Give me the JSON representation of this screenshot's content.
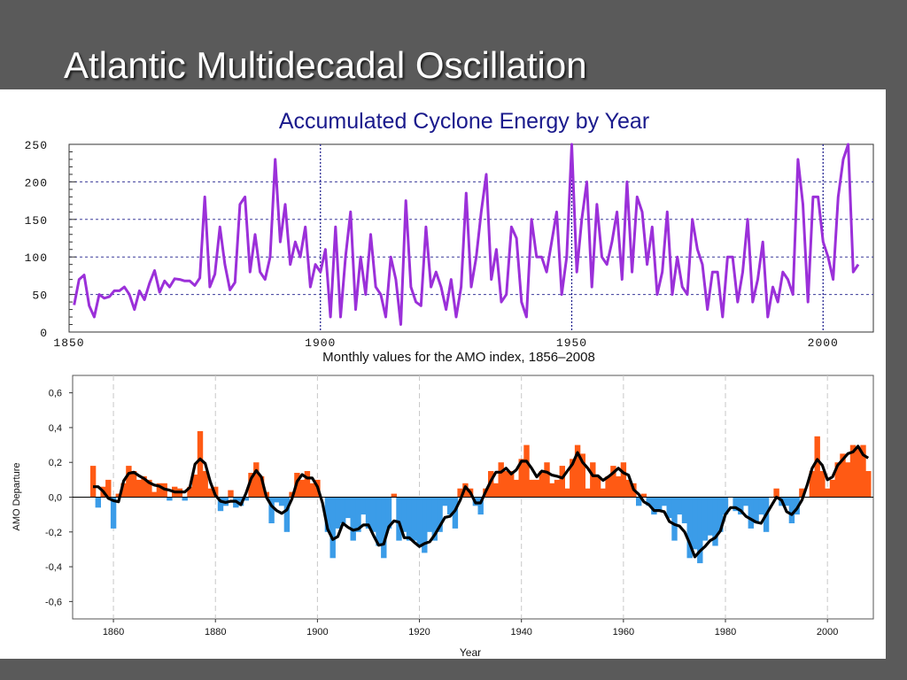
{
  "slide": {
    "title": "Atlantic Multidecadal Oscillation"
  },
  "chart_data": [
    {
      "type": "line",
      "title": "Accumulated Cyclone Energy by Year",
      "xlabel": "",
      "ylabel": "",
      "xlim": [
        1850,
        2010
      ],
      "ylim": [
        0,
        250
      ],
      "x_ticks": [
        "1850",
        "1900",
        "1950",
        "2000"
      ],
      "y_ticks": [
        "0",
        "50",
        "100",
        "150",
        "200",
        "250"
      ],
      "color": "#9b30d9",
      "grid": "dashed horizontal",
      "series": [
        {
          "x": [
            1851,
            1852,
            1853,
            1854,
            1855,
            1856,
            1857,
            1858,
            1859,
            1860,
            1861,
            1862,
            1863,
            1864,
            1865,
            1866,
            1867,
            1868,
            1869,
            1870,
            1871,
            1872,
            1873,
            1874,
            1875,
            1876,
            1877,
            1878,
            1879,
            1880,
            1881,
            1882,
            1883,
            1884,
            1885,
            1886,
            1887,
            1888,
            1889,
            1890,
            1891,
            1892,
            1893,
            1894,
            1895,
            1896,
            1897,
            1898,
            1899,
            1900,
            1901,
            1902,
            1903,
            1904,
            1905,
            1906,
            1907,
            1908,
            1909,
            1910,
            1911,
            1912,
            1913,
            1914,
            1915,
            1916,
            1917,
            1918,
            1919,
            1920,
            1921,
            1922,
            1923,
            1924,
            1925,
            1926,
            1927,
            1928,
            1929,
            1930,
            1931,
            1932,
            1933,
            1934,
            1935,
            1936,
            1937,
            1938,
            1939,
            1940,
            1941,
            1942,
            1943,
            1944,
            1945,
            1946,
            1947,
            1948,
            1949,
            1950,
            1951,
            1952,
            1953,
            1954,
            1955,
            1956,
            1957,
            1958,
            1959,
            1960,
            1961,
            1962,
            1963,
            1964,
            1965,
            1966,
            1967,
            1968,
            1969,
            1970,
            1971,
            1972,
            1973,
            1974,
            1975,
            1976,
            1977,
            1978,
            1979,
            1980,
            1981,
            1982,
            1983,
            1984,
            1985,
            1986,
            1987,
            1988,
            1989,
            1990,
            1991,
            1992,
            1993,
            1994,
            1995,
            1996,
            1997,
            1998,
            1999,
            2000,
            2001,
            2002,
            2003,
            2004,
            2005,
            2006,
            2007
          ],
          "values": [
            36,
            70,
            76,
            35,
            20,
            50,
            45,
            47,
            55,
            55,
            60,
            50,
            30,
            55,
            43,
            65,
            82,
            53,
            68,
            60,
            71,
            70,
            68,
            68,
            62,
            72,
            180,
            60,
            77,
            140,
            90,
            56,
            66,
            170,
            180,
            80,
            130,
            80,
            70,
            100,
            230,
            120,
            170,
            90,
            120,
            100,
            140,
            60,
            90,
            80,
            110,
            20,
            140,
            20,
            100,
            160,
            30,
            100,
            50,
            130,
            60,
            50,
            20,
            100,
            70,
            10,
            175,
            60,
            40,
            35,
            140,
            60,
            80,
            60,
            30,
            70,
            20,
            60,
            185,
            60,
            100,
            160,
            210,
            70,
            110,
            40,
            50,
            140,
            125,
            40,
            20,
            150,
            100,
            100,
            80,
            120,
            160,
            50,
            100,
            250,
            80,
            150,
            200,
            60,
            170,
            100,
            90,
            120,
            160,
            70,
            200,
            80,
            180,
            160,
            90,
            140,
            50,
            80,
            160,
            50,
            100,
            60,
            50,
            150,
            110,
            90,
            30,
            80,
            80,
            20,
            100,
            100,
            40,
            80,
            150,
            40,
            70,
            120,
            20,
            60,
            40,
            80,
            70,
            50,
            230,
            170,
            40,
            180,
            180,
            120,
            100,
            70,
            180,
            230,
            250,
            80,
            90
          ]
        }
      ]
    },
    {
      "type": "area",
      "title": "Monthly values for the AMO index, 1856–2008",
      "xlabel": "Year",
      "ylabel": "AMO Departure",
      "xlim": [
        1852,
        2009
      ],
      "ylim": [
        -0.7,
        0.7
      ],
      "x_ticks": [
        "1860",
        "1880",
        "1900",
        "1920",
        "1940",
        "1960",
        "1980",
        "2000"
      ],
      "y_ticks": [
        "0,6",
        "0,4",
        "0,2",
        "0,0",
        "-0,2",
        "-0,4",
        "-0,6"
      ],
      "colors": {
        "positive": "#ff5a14",
        "negative": "#3b9ce8",
        "smoothed": "#000000"
      },
      "series": [
        {
          "name": "",
          "x": [
            1856,
            1857,
            1858,
            1859,
            1860,
            1861,
            1862,
            1863,
            1864,
            1865,
            1866,
            1867,
            1868,
            1869,
            1870,
            1871,
            1872,
            1873,
            1874,
            1875,
            1876,
            1877,
            1878,
            1879,
            1880,
            1881,
            1882,
            1883,
            1884,
            1885,
            1886,
            1887,
            1888,
            1889,
            1890,
            1891,
            1892,
            1893,
            1894,
            1895,
            1896,
            1897,
            1898,
            1899,
            1900,
            1901,
            1902,
            1903,
            1904,
            1905,
            1906,
            1907,
            1908,
            1909,
            1910,
            1911,
            1912,
            1913,
            1914,
            1915,
            1916,
            1917,
            1918,
            1919,
            1920,
            1921,
            1922,
            1923,
            1924,
            1925,
            1926,
            1927,
            1928,
            1929,
            1930,
            1931,
            1932,
            1933,
            1934,
            1935,
            1936,
            1937,
            1938,
            1939,
            1940,
            1941,
            1942,
            1943,
            1944,
            1945,
            1946,
            1947,
            1948,
            1949,
            1950,
            1951,
            1952,
            1953,
            1954,
            1955,
            1956,
            1957,
            1958,
            1959,
            1960,
            1961,
            1962,
            1963,
            1964,
            1965,
            1966,
            1967,
            1968,
            1969,
            1970,
            1971,
            1972,
            1973,
            1974,
            1975,
            1976,
            1977,
            1978,
            1979,
            1980,
            1981,
            1982,
            1983,
            1984,
            1985,
            1986,
            1987,
            1988,
            1989,
            1990,
            1991,
            1992,
            1993,
            1994,
            1995,
            1996,
            1997,
            1998,
            1999,
            2000,
            2001,
            2002,
            2003,
            2004,
            2005,
            2006,
            2007,
            2008
          ],
          "values": [
            0.18,
            -0.06,
            0.06,
            0.1,
            -0.18,
            0.02,
            0.08,
            0.18,
            0.15,
            0.1,
            0.12,
            0.1,
            0.03,
            0.08,
            0.08,
            -0.02,
            0.06,
            0.05,
            -0.02,
            0.06,
            0.13,
            0.38,
            0.15,
            0.05,
            0.06,
            -0.08,
            -0.05,
            0.04,
            -0.06,
            -0.05,
            -0.02,
            0.14,
            0.2,
            0.12,
            0.03,
            -0.15,
            -0.03,
            -0.05,
            -0.2,
            0.03,
            0.14,
            0.1,
            0.15,
            0.08,
            0.1,
            0.0,
            -0.2,
            -0.35,
            -0.18,
            -0.15,
            -0.12,
            -0.25,
            -0.2,
            -0.1,
            -0.18,
            -0.2,
            -0.28,
            -0.35,
            -0.18,
            0.02,
            -0.25,
            -0.2,
            -0.25,
            -0.25,
            -0.28,
            -0.32,
            -0.2,
            -0.25,
            -0.2,
            -0.05,
            -0.1,
            -0.18,
            0.05,
            0.08,
            0.05,
            -0.05,
            -0.1,
            0.05,
            0.15,
            0.08,
            0.2,
            0.15,
            0.15,
            0.1,
            0.22,
            0.3,
            0.1,
            0.1,
            0.15,
            0.2,
            0.08,
            0.1,
            0.18,
            0.05,
            0.22,
            0.3,
            0.25,
            0.05,
            0.2,
            0.12,
            0.05,
            0.12,
            0.18,
            0.12,
            0.2,
            0.1,
            0.08,
            -0.05,
            0.02,
            -0.05,
            -0.1,
            -0.08,
            -0.05,
            -0.12,
            -0.25,
            -0.1,
            -0.15,
            -0.35,
            -0.3,
            -0.38,
            -0.25,
            -0.22,
            -0.28,
            -0.2,
            -0.1,
            0.0,
            -0.08,
            -0.1,
            -0.05,
            -0.18,
            -0.15,
            -0.1,
            -0.2,
            0.0,
            0.05,
            -0.05,
            -0.05,
            -0.15,
            -0.1,
            0.05,
            0.0,
            0.15,
            0.35,
            0.15,
            0.05,
            0.1,
            0.2,
            0.25,
            0.2,
            0.3,
            0.28,
            0.3,
            0.15
          ]
        }
      ]
    }
  ]
}
